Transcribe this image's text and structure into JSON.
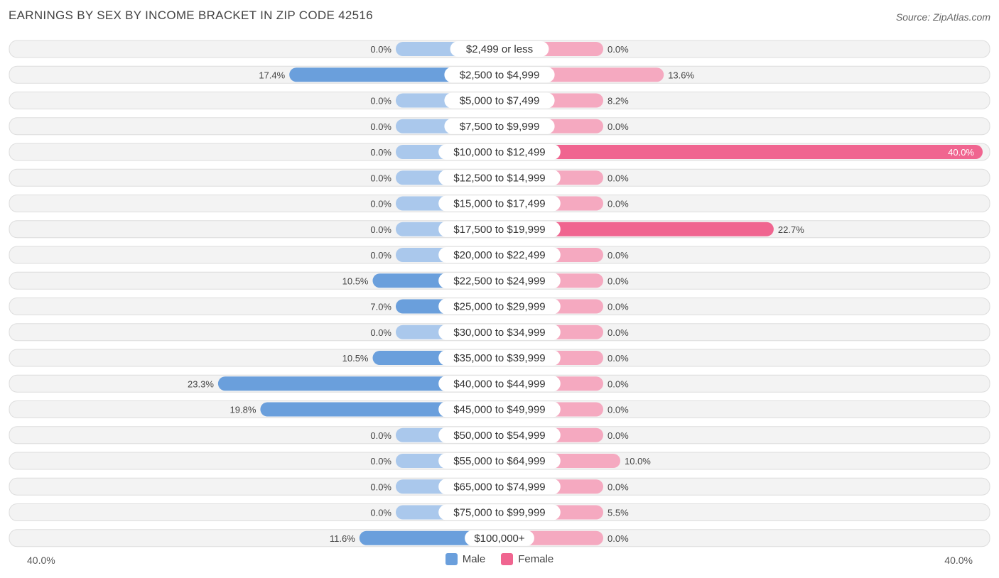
{
  "title": "EARNINGS BY SEX BY INCOME BRACKET IN ZIP CODE 42516",
  "source": "Source: ZipAtlas.com",
  "colors": {
    "male": "#6a9fdc",
    "male_light": "#aac8ec",
    "female": "#f06590",
    "female_light": "#f5a9c0",
    "row_bg": "#f3f3f3",
    "row_border": "#dddddd"
  },
  "chart_data": {
    "type": "bar",
    "orientation": "horizontal-diverging",
    "title": "EARNINGS BY SEX BY INCOME BRACKET IN ZIP CODE 42516",
    "xlim": [
      -40,
      40
    ],
    "axis_left_label": "40.0%",
    "axis_right_label": "40.0%",
    "categories": [
      "$2,499 or less",
      "$2,500 to $4,999",
      "$5,000 to $7,499",
      "$7,500 to $9,999",
      "$10,000 to $12,499",
      "$12,500 to $14,999",
      "$15,000 to $17,499",
      "$17,500 to $19,999",
      "$20,000 to $22,499",
      "$22,500 to $24,999",
      "$25,000 to $29,999",
      "$30,000 to $34,999",
      "$35,000 to $39,999",
      "$40,000 to $44,999",
      "$45,000 to $49,999",
      "$50,000 to $54,999",
      "$55,000 to $64,999",
      "$65,000 to $74,999",
      "$75,000 to $99,999",
      "$100,000+"
    ],
    "series": [
      {
        "name": "Male",
        "values": [
          0.0,
          17.4,
          0.0,
          0.0,
          0.0,
          0.0,
          0.0,
          0.0,
          0.0,
          10.5,
          7.0,
          0.0,
          10.5,
          23.3,
          19.8,
          0.0,
          0.0,
          0.0,
          0.0,
          11.6
        ],
        "labels": [
          "0.0%",
          "17.4%",
          "0.0%",
          "0.0%",
          "0.0%",
          "0.0%",
          "0.0%",
          "0.0%",
          "0.0%",
          "10.5%",
          "7.0%",
          "0.0%",
          "10.5%",
          "23.3%",
          "19.8%",
          "0.0%",
          "0.0%",
          "0.0%",
          "0.0%",
          "11.6%"
        ]
      },
      {
        "name": "Female",
        "values": [
          0.0,
          13.6,
          8.2,
          0.0,
          40.0,
          0.0,
          0.0,
          22.7,
          0.0,
          0.0,
          0.0,
          0.0,
          0.0,
          0.0,
          0.0,
          0.0,
          10.0,
          0.0,
          5.5,
          0.0
        ],
        "labels": [
          "0.0%",
          "13.6%",
          "8.2%",
          "0.0%",
          "40.0%",
          "0.0%",
          "0.0%",
          "22.7%",
          "0.0%",
          "0.0%",
          "0.0%",
          "0.0%",
          "0.0%",
          "0.0%",
          "0.0%",
          "0.0%",
          "10.0%",
          "0.0%",
          "5.5%",
          "0.0%"
        ]
      }
    ],
    "legend": [
      "Male",
      "Female"
    ]
  }
}
